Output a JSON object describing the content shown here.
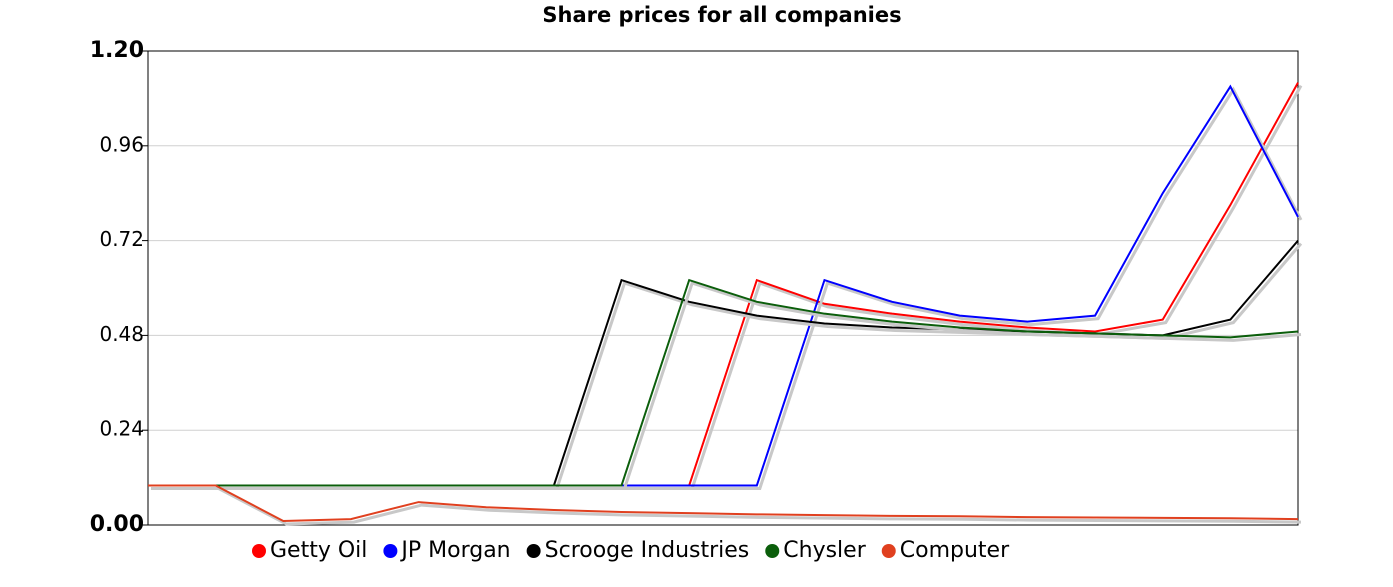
{
  "chart_data": {
    "type": "line",
    "title": "Share prices for all companies",
    "categories": [
      null,
      null,
      null,
      null,
      null,
      null,
      null,
      null,
      null,
      null,
      null,
      null,
      null,
      null,
      null,
      null,
      null,
      null
    ],
    "series": [
      {
        "name": "Getty Oil",
        "color": "#ff0000",
        "values": [
          0.1,
          0.1,
          0.1,
          0.1,
          0.1,
          0.1,
          0.1,
          0.1,
          0.1,
          0.62,
          0.56,
          0.535,
          0.515,
          0.5,
          0.49,
          0.52,
          0.81,
          1.12
        ]
      },
      {
        "name": "JP Morgan",
        "color": "#0000ff",
        "values": [
          0.1,
          0.1,
          0.1,
          0.1,
          0.1,
          0.1,
          0.1,
          0.1,
          0.1,
          0.1,
          0.62,
          0.565,
          0.53,
          0.515,
          0.53,
          0.84,
          1.11,
          0.78
        ]
      },
      {
        "name": "Scrooge Industries",
        "color": "#000000",
        "values": [
          0.1,
          0.1,
          0.1,
          0.1,
          0.1,
          0.1,
          0.1,
          0.62,
          0.565,
          0.53,
          0.51,
          0.5,
          0.495,
          0.49,
          0.485,
          0.48,
          0.52,
          0.72
        ]
      },
      {
        "name": "Chysler",
        "color": "#0b5e0b",
        "values": [
          0.1,
          0.1,
          0.1,
          0.1,
          0.1,
          0.1,
          0.1,
          0.1,
          0.62,
          0.565,
          0.535,
          0.515,
          0.5,
          0.49,
          0.485,
          0.48,
          0.475,
          0.49
        ]
      },
      {
        "name": "Computer",
        "color": "#e0401f",
        "values": [
          0.1,
          0.1,
          0.01,
          0.015,
          0.058,
          0.045,
          0.038,
          0.033,
          0.03,
          0.027,
          0.025,
          0.023,
          0.022,
          0.02,
          0.019,
          0.018,
          0.017,
          0.015
        ]
      }
    ],
    "ylim": [
      0,
      1.2
    ],
    "yticks": [
      {
        "value": 0,
        "label": "0.00"
      },
      {
        "value": 0.24,
        "label": "0.24"
      },
      {
        "value": 0.48,
        "label": "0.48"
      },
      {
        "value": 0.72,
        "label": "0.72"
      },
      {
        "value": 0.96,
        "label": "0.96"
      },
      {
        "value": 1.2,
        "label": "1.20"
      }
    ],
    "grid": true,
    "legend": "bottom"
  }
}
